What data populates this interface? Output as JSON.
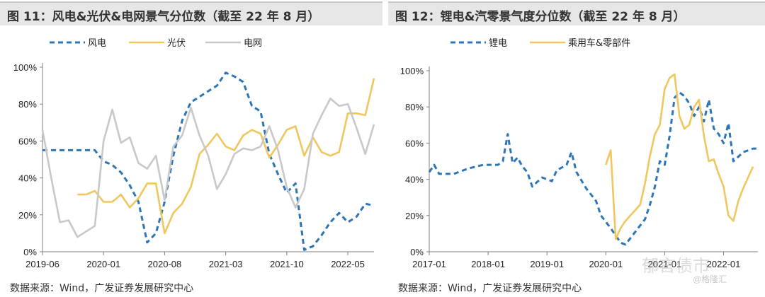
{
  "charts": [
    {
      "title": "图 11：风电&光伏&电网景气分位数（截至 22 年 8 月）",
      "source": "数据来源：Wind，广发证券发展研究中心",
      "chart_data": {
        "type": "line",
        "title": "图 11：风电&光伏&电网景气分位数（截至 22 年 8 月）",
        "xlabel": "",
        "ylabel": "",
        "x_start": "2019-06",
        "x_end": "2022-08",
        "x_ticks": [
          "2019-06",
          "2020-01",
          "2020-08",
          "2021-03",
          "2021-10",
          "2022-05"
        ],
        "y_ticks": [
          "0%",
          "20%",
          "40%",
          "60%",
          "80%",
          "100%"
        ],
        "ylim": [
          0,
          100
        ],
        "legend_position": "top",
        "grid": false,
        "series": [
          {
            "name": "风电",
            "color": "#2e75b6",
            "style": "dashed",
            "points": [
              [
                "2019-06",
                55
              ],
              [
                "2019-08",
                55
              ],
              [
                "2019-10",
                55
              ],
              [
                "2019-12",
                55
              ],
              [
                "2020-01",
                49
              ],
              [
                "2020-02",
                47
              ],
              [
                "2020-03",
                43
              ],
              [
                "2020-04",
                36
              ],
              [
                "2020-05",
                27
              ],
              [
                "2020-06",
                5
              ],
              [
                "2020-07",
                10
              ],
              [
                "2020-08",
                27
              ],
              [
                "2020-09",
                52
              ],
              [
                "2020-10",
                71
              ],
              [
                "2020-11",
                81
              ],
              [
                "2020-12",
                84
              ],
              [
                "2021-01",
                87
              ],
              [
                "2021-02",
                90
              ],
              [
                "2021-03",
                97
              ],
              [
                "2021-04",
                95
              ],
              [
                "2021-05",
                92
              ],
              [
                "2021-06",
                79
              ],
              [
                "2021-07",
                76
              ],
              [
                "2021-08",
                53
              ],
              [
                "2021-09",
                42
              ],
              [
                "2021-10",
                32
              ],
              [
                "2021-11",
                37
              ],
              [
                "2021-12",
                1
              ],
              [
                "2022-01",
                3
              ],
              [
                "2022-02",
                9
              ],
              [
                "2022-03",
                16
              ],
              [
                "2022-04",
                21
              ],
              [
                "2022-05",
                16
              ],
              [
                "2022-06",
                19
              ],
              [
                "2022-07",
                26
              ],
              [
                "2022-08",
                25
              ]
            ]
          },
          {
            "name": "光伏",
            "color": "#f0c75e",
            "style": "solid",
            "points": [
              [
                "2019-10",
                31
              ],
              [
                "2019-11",
                31
              ],
              [
                "2019-12",
                33
              ],
              [
                "2020-01",
                27
              ],
              [
                "2020-02",
                27
              ],
              [
                "2020-03",
                31
              ],
              [
                "2020-04",
                24
              ],
              [
                "2020-05",
                29
              ],
              [
                "2020-06",
                37
              ],
              [
                "2020-07",
                37
              ],
              [
                "2020-08",
                10
              ],
              [
                "2020-09",
                21
              ],
              [
                "2020-10",
                26
              ],
              [
                "2020-11",
                35
              ],
              [
                "2020-12",
                53
              ],
              [
                "2021-01",
                58
              ],
              [
                "2021-02",
                64
              ],
              [
                "2021-03",
                57
              ],
              [
                "2021-04",
                55
              ],
              [
                "2021-05",
                63
              ],
              [
                "2021-06",
                66
              ],
              [
                "2021-07",
                64
              ],
              [
                "2021-08",
                51
              ],
              [
                "2021-09",
                58
              ],
              [
                "2021-10",
                66
              ],
              [
                "2021-11",
                68
              ],
              [
                "2021-12",
                52
              ],
              [
                "2022-01",
                62
              ],
              [
                "2022-02",
                54
              ],
              [
                "2022-03",
                52
              ],
              [
                "2022-04",
                54
              ],
              [
                "2022-05",
                75
              ],
              [
                "2022-06",
                75
              ],
              [
                "2022-07",
                74
              ],
              [
                "2022-08",
                94
              ]
            ]
          },
          {
            "name": "电网",
            "color": "#c8c8c8",
            "style": "solid",
            "points": [
              [
                "2019-06",
                66
              ],
              [
                "2019-07",
                40
              ],
              [
                "2019-08",
                16
              ],
              [
                "2019-09",
                17
              ],
              [
                "2019-10",
                8
              ],
              [
                "2019-11",
                11
              ],
              [
                "2019-12",
                14
              ],
              [
                "2020-01",
                60
              ],
              [
                "2020-02",
                77
              ],
              [
                "2020-03",
                59
              ],
              [
                "2020-04",
                62
              ],
              [
                "2020-05",
                48
              ],
              [
                "2020-06",
                45
              ],
              [
                "2020-07",
                52
              ],
              [
                "2020-08",
                28
              ],
              [
                "2020-09",
                57
              ],
              [
                "2020-10",
                63
              ],
              [
                "2020-11",
                78
              ],
              [
                "2020-12",
                63
              ],
              [
                "2021-01",
                52
              ],
              [
                "2021-02",
                34
              ],
              [
                "2021-03",
                42
              ],
              [
                "2021-04",
                53
              ],
              [
                "2021-05",
                56
              ],
              [
                "2021-06",
                55
              ],
              [
                "2021-07",
                57
              ],
              [
                "2021-08",
                68
              ],
              [
                "2021-09",
                55
              ],
              [
                "2021-10",
                35
              ],
              [
                "2021-11",
                24
              ],
              [
                "2021-12",
                34
              ],
              [
                "2022-01",
                64
              ],
              [
                "2022-02",
                74
              ],
              [
                "2022-03",
                83
              ],
              [
                "2022-04",
                79
              ],
              [
                "2022-05",
                80
              ],
              [
                "2022-06",
                67
              ],
              [
                "2022-07",
                53
              ],
              [
                "2022-08",
                69
              ]
            ]
          }
        ]
      }
    },
    {
      "title": "图 12：锂电&汽零景气度分位数（截至 22 年 8 月）",
      "source": "数据来源：Wind，广发证券发展研究中心",
      "chart_data": {
        "type": "line",
        "title": "图 12：锂电&汽零景气度分位数（截至 22 年 8 月）",
        "xlabel": "",
        "ylabel": "",
        "x_start": "2017-01",
        "x_end": "2022-08",
        "x_ticks": [
          "2017-01",
          "2018-01",
          "2019-01",
          "2020-01",
          "2021-01",
          "2022-01"
        ],
        "y_ticks": [
          "0%",
          "20%",
          "40%",
          "60%",
          "80%",
          "100%"
        ],
        "ylim": [
          0,
          100
        ],
        "legend_position": "top",
        "grid": false,
        "series": [
          {
            "name": "锂电",
            "color": "#2e75b6",
            "style": "dashed",
            "points": [
              [
                "2017-01",
                44
              ],
              [
                "2017-02",
                48
              ],
              [
                "2017-03",
                43
              ],
              [
                "2017-06",
                43
              ],
              [
                "2017-09",
                46
              ],
              [
                "2017-12",
                48
              ],
              [
                "2018-03",
                48
              ],
              [
                "2018-04",
                50
              ],
              [
                "2018-05",
                65
              ],
              [
                "2018-06",
                49
              ],
              [
                "2018-07",
                52
              ],
              [
                "2018-08",
                47
              ],
              [
                "2018-09",
                44
              ],
              [
                "2018-10",
                36
              ],
              [
                "2018-12",
                41
              ],
              [
                "2019-02",
                39
              ],
              [
                "2019-03",
                45
              ],
              [
                "2019-05",
                48
              ],
              [
                "2019-06",
                55
              ],
              [
                "2019-07",
                44
              ],
              [
                "2019-09",
                35
              ],
              [
                "2019-11",
                28
              ],
              [
                "2019-12",
                20
              ],
              [
                "2020-02",
                13
              ],
              [
                "2020-04",
                5
              ],
              [
                "2020-05",
                4
              ],
              [
                "2020-07",
                11
              ],
              [
                "2020-09",
                18
              ],
              [
                "2020-10",
                26
              ],
              [
                "2020-11",
                36
              ],
              [
                "2020-12",
                50
              ],
              [
                "2021-01",
                48
              ],
              [
                "2021-02",
                64
              ],
              [
                "2021-03",
                85
              ],
              [
                "2021-04",
                88
              ],
              [
                "2021-05",
                86
              ],
              [
                "2021-06",
                82
              ],
              [
                "2021-07",
                75
              ],
              [
                "2021-08",
                80
              ],
              [
                "2021-09",
                72
              ],
              [
                "2021-10",
                84
              ],
              [
                "2021-11",
                68
              ],
              [
                "2021-12",
                65
              ],
              [
                "2022-01",
                60
              ],
              [
                "2022-02",
                71
              ],
              [
                "2022-03",
                50
              ],
              [
                "2022-05",
                55
              ],
              [
                "2022-07",
                57
              ],
              [
                "2022-08",
                57
              ]
            ]
          },
          {
            "name": "乘用车&零部件",
            "color": "#f0c75e",
            "style": "solid",
            "points": [
              [
                "2020-01",
                48
              ],
              [
                "2020-02",
                56
              ],
              [
                "2020-03",
                7
              ],
              [
                "2020-04",
                13
              ],
              [
                "2020-05",
                17
              ],
              [
                "2020-06",
                20
              ],
              [
                "2020-07",
                23
              ],
              [
                "2020-08",
                26
              ],
              [
                "2020-09",
                38
              ],
              [
                "2020-10",
                53
              ],
              [
                "2020-11",
                65
              ],
              [
                "2020-12",
                70
              ],
              [
                "2021-01",
                90
              ],
              [
                "2021-02",
                96
              ],
              [
                "2021-03",
                98
              ],
              [
                "2021-04",
                75
              ],
              [
                "2021-05",
                68
              ],
              [
                "2021-06",
                70
              ],
              [
                "2021-07",
                80
              ],
              [
                "2021-08",
                84
              ],
              [
                "2021-09",
                64
              ],
              [
                "2021-10",
                50
              ],
              [
                "2021-11",
                51
              ],
              [
                "2021-12",
                43
              ],
              [
                "2022-01",
                36
              ],
              [
                "2022-02",
                20
              ],
              [
                "2022-03",
                17
              ],
              [
                "2022-04",
                28
              ],
              [
                "2022-05",
                35
              ],
              [
                "2022-06",
                41
              ],
              [
                "2022-07",
                47
              ]
            ]
          }
        ]
      }
    }
  ],
  "watermark": {
    "icon": "wechat-icon",
    "text": "郁言债市",
    "sub": "@格隆汇"
  }
}
